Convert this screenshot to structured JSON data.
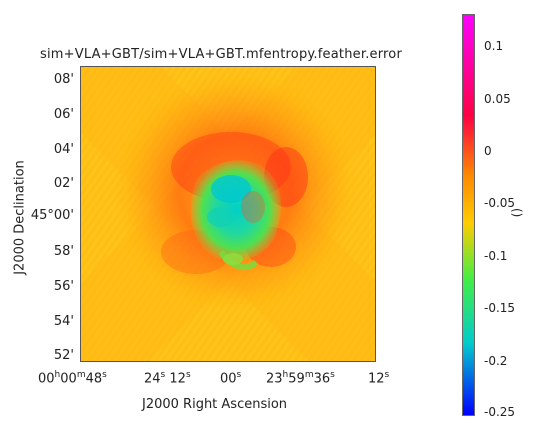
{
  "title": "sim+VLA+GBT/sim+VLA+GBT.mfentropy.feather.error",
  "y_axis": {
    "label": "J2000 Declination",
    "ticks": [
      "08'",
      "06'",
      "04'",
      "02'",
      "45°00'",
      "58'",
      "56'",
      "54'",
      "52'"
    ]
  },
  "x_axis": {
    "label": "J2000 Right Ascension",
    "ticks": [
      {
        "main": "00",
        "sup1": "h",
        "mid": "00",
        "sup2": "m",
        "end": "48",
        "sup3": "s"
      },
      {
        "main": "24",
        "sup1": "s",
        "mid": "",
        "sup2": "",
        "end": "12",
        "sup3": "s"
      },
      {
        "main": "00",
        "sup1": "s",
        "mid": "",
        "sup2": "",
        "end": "",
        "sup3": ""
      },
      {
        "main": "23",
        "sup1": "h",
        "mid": "59",
        "sup2": "m",
        "end": "36",
        "sup3": "s"
      },
      {
        "main": "12",
        "sup1": "s",
        "mid": "",
        "sup2": "",
        "end": "",
        "sup3": ""
      }
    ]
  },
  "colorbar": {
    "unit": "()",
    "ticks": [
      "0.1",
      "0.05",
      "0",
      "-0.05",
      "-0.1",
      "-0.15",
      "-0.2",
      "-0.25"
    ],
    "colors": {
      "top": "#ff00ff",
      "hi": "#ff0044",
      "mid_hi": "#ff8800",
      "zero": "#ffcc00",
      "low": "#44ee44",
      "lower": "#00cccc",
      "bottom": "#0000ff"
    }
  }
}
